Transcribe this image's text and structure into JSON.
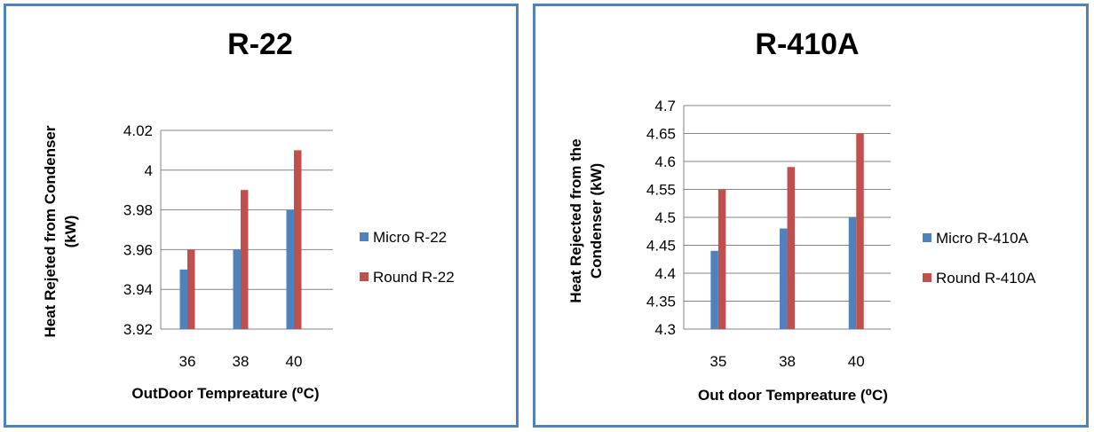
{
  "chart_data": [
    {
      "type": "bar",
      "title": "R-22",
      "xlabel": "OutDoor Tempreature (⁰C)",
      "ylabel": "Heat Rejeted from Condenser (kW)",
      "categories": [
        "36",
        "38",
        "40"
      ],
      "ylim": [
        3.92,
        4.02
      ],
      "yticks": [
        "3.92",
        "3.94",
        "3.96",
        "3.98",
        "4",
        "4.02"
      ],
      "grid": true,
      "legend_position": "right",
      "series": [
        {
          "name": "Micro R-22",
          "color": "#4f81bd",
          "values": [
            3.95,
            3.96,
            3.98
          ]
        },
        {
          "name": "Round R-22",
          "color": "#c0504d",
          "values": [
            3.96,
            3.99,
            4.01
          ]
        }
      ]
    },
    {
      "type": "bar",
      "title": "R-410A",
      "xlabel": "Out door Tempreature (⁰C)",
      "ylabel": "Heat Rejected from the Condenser (kW)",
      "categories": [
        "35",
        "38",
        "40"
      ],
      "ylim": [
        4.3,
        4.7
      ],
      "yticks": [
        "4.3",
        "4.35",
        "4.4",
        "4.45",
        "4.5",
        "4.55",
        "4.6",
        "4.65",
        "4.7"
      ],
      "grid": true,
      "legend_position": "right",
      "series": [
        {
          "name": "Micro R-410A",
          "color": "#4f81bd",
          "values": [
            4.44,
            4.48,
            4.5
          ]
        },
        {
          "name": "Round R-410A",
          "color": "#c0504d",
          "values": [
            4.55,
            4.59,
            4.65
          ]
        }
      ]
    }
  ]
}
